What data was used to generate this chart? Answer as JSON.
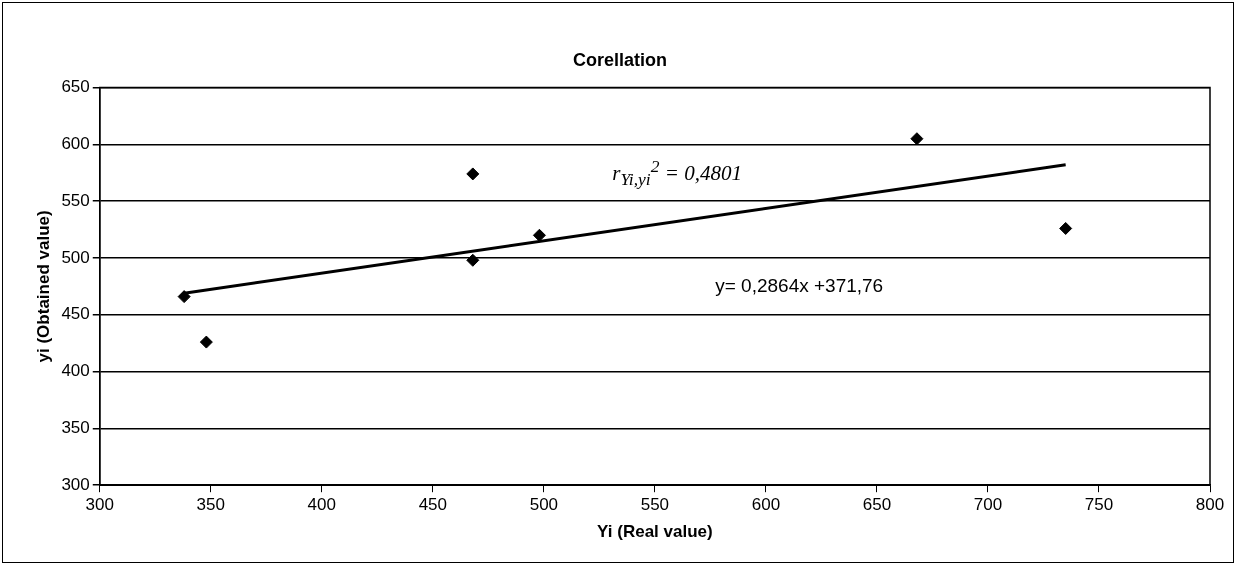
{
  "chart_data": {
    "type": "scatter",
    "title": "Corellation",
    "xlabel": "Yi (Real value)",
    "ylabel": "yi (Obtained value)",
    "x": [
      338,
      348,
      468,
      468,
      498,
      668,
      735
    ],
    "series": [
      {
        "type": "scatter",
        "color": "#000000",
        "marker": "diamond",
        "values": [
          466,
          426,
          574,
          498,
          520,
          605,
          526
        ]
      },
      {
        "type": "line",
        "color": "#000000",
        "marker": "none",
        "x": [
          338,
          735
        ],
        "values": [
          469,
          582
        ]
      }
    ],
    "xlim": [
      300,
      800
    ],
    "xticks": [
      300,
      350,
      400,
      450,
      500,
      550,
      600,
      650,
      700,
      750,
      800
    ],
    "ylim": [
      300,
      650
    ],
    "yticks": [
      300,
      350,
      400,
      450,
      500,
      550,
      600,
      650
    ],
    "grid": "y",
    "legend": false,
    "annotations": [
      "r$_{Yi,yi}$$^{2}$ = 0,4801",
      "y= 0,2864x +371,76"
    ]
  }
}
